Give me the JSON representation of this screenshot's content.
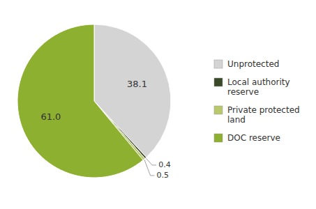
{
  "chart_data": {
    "type": "pie",
    "categories": [
      "Unprotected",
      "Local authority\nreserve",
      "Private protected\nland",
      "DOC reserve"
    ],
    "values": [
      38.1,
      0.4,
      0.5,
      61.0
    ],
    "value_labels": [
      "38.1",
      "0.4",
      "0.5",
      "61.0"
    ],
    "colors": [
      "#d4d4d4",
      "#3a4a28",
      "#b8c86a",
      "#8db030"
    ],
    "data_labels": true,
    "legend": "right"
  }
}
